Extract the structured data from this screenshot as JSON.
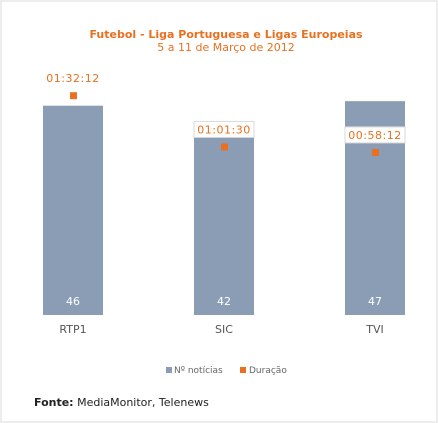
{
  "chart_data": {
    "type": "bar",
    "title": "Futebol - Liga Portuguesa e Ligas Europeias",
    "subtitle": "5 a 11 de Março de 2012",
    "categories": [
      "RTP1",
      "SIC",
      "TVI"
    ],
    "series": [
      {
        "name": "Nº notícias",
        "type": "bar",
        "values": [
          46,
          42,
          47
        ],
        "color": "#8a9db5"
      },
      {
        "name": "Duração",
        "type": "point",
        "values": [
          "01:32:12",
          "01:01:30",
          "00:58:12"
        ],
        "seconds": [
          5532,
          3690,
          3492
        ],
        "color": "#e8701f"
      }
    ],
    "bar_labels": [
      "46",
      "42",
      "47"
    ],
    "duration_labels": [
      "01:32:12",
      "01:01:30",
      "00:58:12"
    ],
    "legend_position": "bottom",
    "grid": false
  },
  "legend": {
    "count_label": "Nº notícias",
    "duration_label": "Duração"
  },
  "source": {
    "label": "Fonte:",
    "text": " MediaMonitor, Telenews"
  }
}
